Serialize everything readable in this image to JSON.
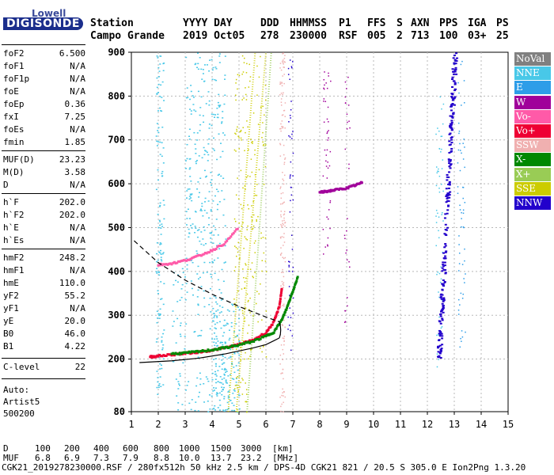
{
  "logo": {
    "top": "Lowell",
    "main": "DIGISONDE"
  },
  "header": {
    "row1": [
      "Station",
      "YYYY DAY",
      "DDD",
      "HHMMSS",
      "P1",
      "FFS",
      "S",
      "AXN",
      "PPS",
      "IGA",
      "PS"
    ],
    "row2": [
      "Campo Grande",
      "2019 Oct05",
      "278",
      "230000",
      "RSF",
      "005",
      "2",
      "713",
      "100",
      "03+",
      "25"
    ]
  },
  "params": [
    {
      "name": "foF2",
      "value": "6.500"
    },
    {
      "name": "foF1",
      "value": "N/A"
    },
    {
      "name": "foF1p",
      "value": "N/A"
    },
    {
      "name": "foE",
      "value": "N/A"
    },
    {
      "name": "foEp",
      "value": "0.36"
    },
    {
      "name": "fxI",
      "value": "7.25"
    },
    {
      "name": "foEs",
      "value": "N/A"
    },
    {
      "name": "fmin",
      "value": "1.85"
    },
    {
      "name": "MUF(D)",
      "value": "23.23"
    },
    {
      "name": "M(D)",
      "value": "3.58"
    },
    {
      "name": "D",
      "value": "N/A"
    },
    {
      "name": "h`F",
      "value": "202.0"
    },
    {
      "name": "h`F2",
      "value": "202.0"
    },
    {
      "name": "h`E",
      "value": "N/A"
    },
    {
      "name": "h`Es",
      "value": "N/A"
    },
    {
      "name": "hmF2",
      "value": "248.2"
    },
    {
      "name": "hmF1",
      "value": "N/A"
    },
    {
      "name": "hmE",
      "value": "110.0"
    },
    {
      "name": "yF2",
      "value": "55.2"
    },
    {
      "name": "yF1",
      "value": "N/A"
    },
    {
      "name": "yE",
      "value": "20.0"
    },
    {
      "name": "B0",
      "value": "46.0"
    },
    {
      "name": "B1",
      "value": "4.22"
    },
    {
      "name": "C-level",
      "value": "22"
    }
  ],
  "auto": {
    "line1": "Auto:",
    "line2": "Artist5",
    "line3": "500200"
  },
  "legend": [
    {
      "label": "NoVal",
      "color": "#808080"
    },
    {
      "label": "NNE",
      "color": "#48c8e8"
    },
    {
      "label": "E",
      "color": "#2e9de8"
    },
    {
      "label": "W",
      "color": "#a0009a"
    },
    {
      "label": "Vo-",
      "color": "#ff5aa8"
    },
    {
      "label": "Vo+",
      "color": "#ee0033"
    },
    {
      "label": "SSW",
      "color": "#f0b0b0"
    },
    {
      "label": "X-",
      "color": "#008800"
    },
    {
      "label": "X+",
      "color": "#99cc55"
    },
    {
      "label": "SSE",
      "color": "#cccc00"
    },
    {
      "label": "NNW",
      "color": "#2200cc"
    }
  ],
  "muf_table": {
    "d_label": "D",
    "d_values": [
      "100",
      "200",
      "400",
      "600",
      "800",
      "1000",
      "1500",
      "3000"
    ],
    "d_unit": "[km]",
    "muf_label": "MUF",
    "muf_values": [
      "6.8",
      "6.9",
      "7.3",
      "7.9",
      "8.8",
      "10.0",
      "13.7",
      "23.2"
    ],
    "muf_unit": "[MHz]"
  },
  "footer": "CGK21_2019278230000.RSF / 280fx512h 50 kHz 2.5 km / DPS-4D CGK21 821 / 20.5 S 305.0 E Ion2Png 1.3.20",
  "chart_data": {
    "type": "scatter",
    "x_ticks": [
      1,
      2,
      3,
      4,
      5,
      6,
      7,
      8,
      9,
      10,
      11,
      12,
      13,
      14,
      15
    ],
    "y_ticks": [
      80,
      200,
      300,
      400,
      500,
      600,
      700,
      800,
      900
    ],
    "xlim": [
      1,
      15
    ],
    "ylim": [
      80,
      900
    ],
    "grid": true,
    "series": [
      {
        "name": "Vo+",
        "color": "#ee0033",
        "x": [
          1.7,
          2.0,
          2.5,
          3.0,
          3.5,
          4.0,
          4.5,
          5.0,
          5.5,
          6.0,
          6.3,
          6.5,
          6.6
        ],
        "y": [
          205,
          207,
          210,
          213,
          216,
          220,
          226,
          233,
          243,
          260,
          285,
          320,
          365
        ]
      },
      {
        "name": "X-",
        "color": "#008800",
        "x": [
          2.5,
          3.0,
          3.5,
          4.0,
          4.5,
          5.0,
          5.5,
          6.0,
          6.3,
          6.6,
          6.8,
          7.0,
          7.2
        ],
        "y": [
          212,
          214,
          217,
          221,
          226,
          232,
          240,
          252,
          262,
          290,
          320,
          355,
          390
        ]
      },
      {
        "name": "Vo-",
        "color": "#ff5aa8",
        "x": [
          2.0,
          2.5,
          3.0,
          3.5,
          4.0,
          4.5,
          5.0
        ],
        "y": [
          415,
          418,
          425,
          435,
          448,
          465,
          502
        ]
      },
      {
        "name": "W",
        "color": "#a0009a",
        "x": [
          8.0,
          8.3,
          8.6,
          9.0,
          9.3,
          9.6
        ],
        "y": [
          580,
          583,
          586,
          590,
          596,
          603
        ]
      },
      {
        "name": "NNW",
        "color": "#2200cc",
        "x": [
          12.4,
          12.5,
          12.6,
          12.7,
          12.8,
          12.9,
          13.0
        ],
        "y": [
          200,
          300,
          400,
          500,
          600,
          750,
          900
        ]
      }
    ]
  }
}
